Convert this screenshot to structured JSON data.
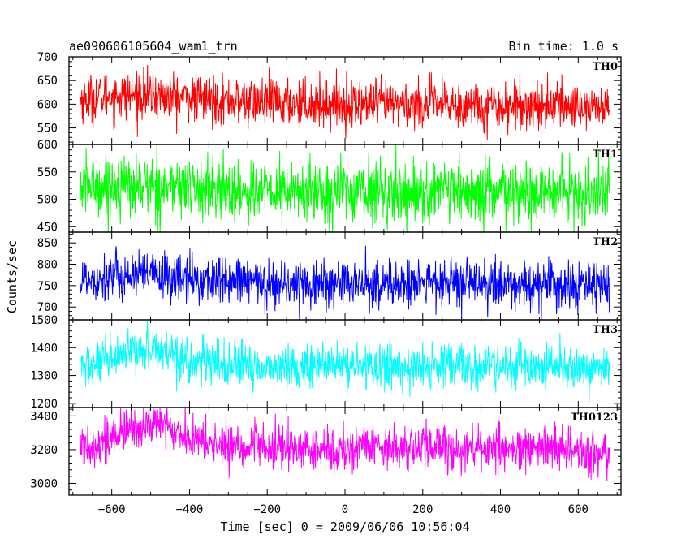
{
  "header": {
    "title": "ae090606105604_wam1_trn",
    "bin_time": "Bin time: 1.0 s"
  },
  "chart_data": {
    "type": "line",
    "title": "ae090606105604_wam1_trn",
    "xlabel": "Time [sec] 0 = 2009/06/06 10:56:04",
    "ylabel": "Counts/sec",
    "xlim": [
      -710,
      710
    ],
    "x_ticks": [
      -600,
      -400,
      -200,
      0,
      200,
      400,
      600
    ],
    "x_tick_labels": [
      "−600",
      "−400",
      "−200",
      "0",
      "200",
      "400",
      "600"
    ],
    "data_x_range": [
      -680,
      680
    ],
    "series": [
      {
        "name": "TH0",
        "color": "#ff0000",
        "ylim": [
          515,
          700
        ],
        "y_ticks": [
          550,
          600,
          650,
          700
        ],
        "trend_x": [
          -680,
          -600,
          -500,
          -400,
          -200,
          0,
          200,
          400,
          600,
          680
        ],
        "trend_y": [
          610,
          618,
          618,
          612,
          603,
          600,
          600,
          597,
          597,
          593
        ],
        "noise": 25
      },
      {
        "name": "TH1",
        "color": "#00ff00",
        "ylim": [
          440,
          600
        ],
        "y_ticks": [
          450,
          500,
          550,
          600
        ],
        "trend_x": [
          -680,
          -600,
          -500,
          -400,
          -200,
          0,
          200,
          400,
          600,
          680
        ],
        "trend_y": [
          522,
          525,
          525,
          520,
          512,
          516,
          512,
          510,
          510,
          508
        ],
        "noise": 28
      },
      {
        "name": "TH2",
        "color": "#0000ff",
        "ylim": [
          670,
          875
        ],
        "y_ticks": [
          700,
          750,
          800,
          850
        ],
        "trend_x": [
          -680,
          -600,
          -500,
          -400,
          -200,
          0,
          200,
          400,
          600,
          680
        ],
        "trend_y": [
          765,
          770,
          775,
          765,
          755,
          752,
          755,
          752,
          748,
          745
        ],
        "noise": 28
      },
      {
        "name": "TH3",
        "color": "#00ffff",
        "ylim": [
          1185,
          1500
        ],
        "y_ticks": [
          1200,
          1300,
          1400,
          1500
        ],
        "trend_x": [
          -680,
          -600,
          -550,
          -500,
          -450,
          -400,
          -300,
          -200,
          0,
          200,
          400,
          600,
          680
        ],
        "trend_y": [
          1330,
          1350,
          1380,
          1400,
          1390,
          1350,
          1335,
          1330,
          1335,
          1330,
          1330,
          1325,
          1320
        ],
        "noise": 40
      },
      {
        "name": "TH0123",
        "color": "#ff00ff",
        "ylim": [
          2930,
          3450
        ],
        "y_ticks": [
          3000,
          3200,
          3400
        ],
        "trend_x": [
          -680,
          -600,
          -550,
          -500,
          -450,
          -400,
          -300,
          -200,
          0,
          50,
          200,
          400,
          600,
          680
        ],
        "trend_y": [
          3220,
          3260,
          3320,
          3360,
          3330,
          3260,
          3220,
          3210,
          3190,
          3230,
          3210,
          3205,
          3190,
          3175
        ],
        "noise": 65
      }
    ]
  }
}
